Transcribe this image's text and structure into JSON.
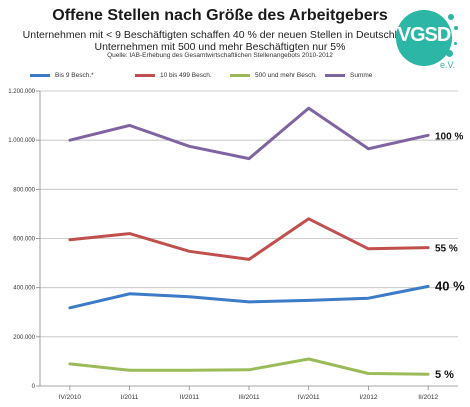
{
  "header": {
    "title": "Offene Stellen nach Größe des Arbeitgebers",
    "subtitle_line1": "Unternehmen mit < 9 Beschäftigten schaffen 40 % der neuen Stellen in Deutschland,",
    "subtitle_line2": "Unternehmen mit 500 und mehr Beschäftigten nur 5%",
    "source": "Quelle: IAB-Erhebung des Gesamtwirtschaftlichen Stellenangebots 2010-2012"
  },
  "logo": {
    "text": "VGSD",
    "sub": "e.V.",
    "color": "#2bb6a6",
    "icon": "vgsd-logo-icon"
  },
  "chart_data": {
    "type": "line",
    "categories": [
      "IV/2010",
      "I/2011",
      "II/2011",
      "III/2011",
      "IV/2011",
      "I/2012",
      "II/2012"
    ],
    "ylim": [
      0,
      1200000
    ],
    "yticks": [
      0,
      200000,
      400000,
      600000,
      800000,
      1000000,
      1200000
    ],
    "ytick_labels": [
      "0",
      "200.000",
      "400.000",
      "600.000",
      "800.000",
      "1.000.000",
      "1.200.000"
    ],
    "grid": true,
    "legend_position": "top",
    "series": [
      {
        "name": "Bis 9 Besch.*",
        "color": "#3c7bc6",
        "values": [
          318000,
          375000,
          363000,
          342000,
          348000,
          357000,
          405000
        ]
      },
      {
        "name": "10 bis 499 Besch.",
        "color": "#c0504d",
        "values": [
          595000,
          620000,
          548000,
          515000,
          680000,
          558000,
          563000
        ]
      },
      {
        "name": "500 und mehr Besch.",
        "color": "#9bbb59",
        "values": [
          90000,
          64000,
          64000,
          66000,
          110000,
          51000,
          48000
        ]
      },
      {
        "name": "Summe",
        "color": "#8064a2",
        "values": [
          1000000,
          1060000,
          975000,
          925000,
          1130000,
          965000,
          1020000
        ]
      }
    ],
    "annotations": [
      {
        "series": "Summe",
        "text": "100 %"
      },
      {
        "series": "10 bis 499 Besch.",
        "text": "55 %"
      },
      {
        "series": "Bis 9 Besch.*",
        "text": "40 %"
      },
      {
        "series": "500 und mehr Besch.",
        "text": "5 %"
      }
    ]
  }
}
